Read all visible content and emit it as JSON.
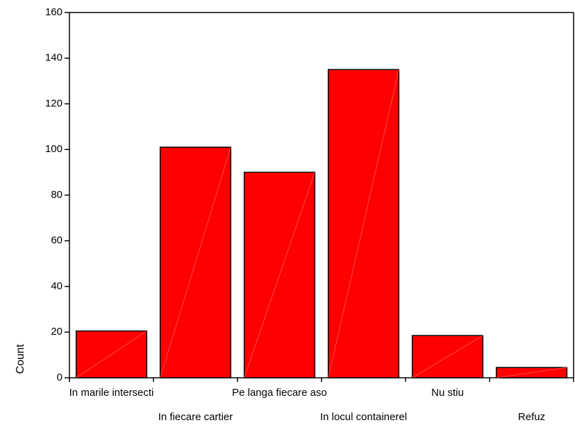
{
  "chart_data": {
    "type": "bar",
    "categories": [
      "In marile intersecti",
      "In fiecare cartier",
      "Pe langa fiecare aso",
      "In locul containerel",
      "Nu stiu",
      "Refuz"
    ],
    "values": [
      20.5,
      101,
      90,
      135,
      18.5,
      4.5
    ],
    "ylabel": "Count",
    "xlabel": "",
    "ylim": [
      0,
      160
    ],
    "yticks": [
      0,
      20,
      40,
      60,
      80,
      100,
      120,
      140,
      160
    ],
    "bar_color": "#ff0000",
    "grid": false,
    "legend": "none"
  }
}
